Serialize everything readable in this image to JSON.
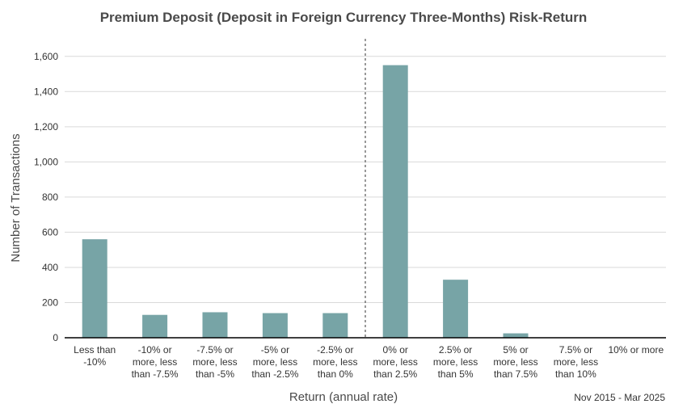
{
  "chart_data": {
    "type": "bar",
    "title": "Premium Deposit (Deposit in Foreign Currency Three-Months) Risk-Return",
    "xlabel": "Return (annual rate)",
    "ylabel": "Number of Transactions",
    "note": "Nov 2015 - Mar 2025",
    "ylim": [
      0,
      1700
    ],
    "yticks": [
      "0",
      "200",
      "400",
      "600",
      "800",
      "1,000",
      "1,200",
      "1,400",
      "1,600"
    ],
    "ytick_values": [
      0,
      200,
      400,
      600,
      800,
      1000,
      1200,
      1400,
      1600
    ],
    "categories": [
      [
        "Less than",
        "-10%"
      ],
      [
        "-10% or",
        "more, less",
        "than -7.5%"
      ],
      [
        "-7.5% or",
        "more, less",
        "than -5%"
      ],
      [
        "-5% or",
        "more, less",
        "than -2.5%"
      ],
      [
        "-2.5% or",
        "more, less",
        "than 0%"
      ],
      [
        "0% or",
        "more, less",
        "than 2.5%"
      ],
      [
        "2.5% or",
        "more, less",
        "than 5%"
      ],
      [
        "5% or",
        "more, less",
        "than 7.5%"
      ],
      [
        "7.5% or",
        "more, less",
        "than 10%"
      ],
      [
        "10% or more"
      ]
    ],
    "values": [
      560,
      130,
      145,
      140,
      140,
      1550,
      330,
      25,
      0,
      0
    ],
    "bar_color": "#77a4a6",
    "grid": true,
    "divider_between": [
      4,
      5
    ]
  }
}
